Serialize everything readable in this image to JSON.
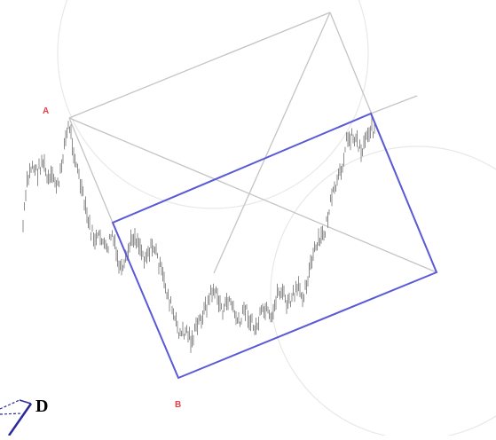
{
  "labels": {
    "point_a": "A",
    "point_b": "B",
    "point_d": "D"
  },
  "colors": {
    "construction_lines": "#c4c4c4",
    "circles": "#e8e8e8",
    "price_bars": "#8c8c8c",
    "rectangle": "#5a5ad8",
    "point_labels": "#e8414a",
    "corner_mark": "#2a2a9a",
    "corner_label": "#000000"
  }
}
